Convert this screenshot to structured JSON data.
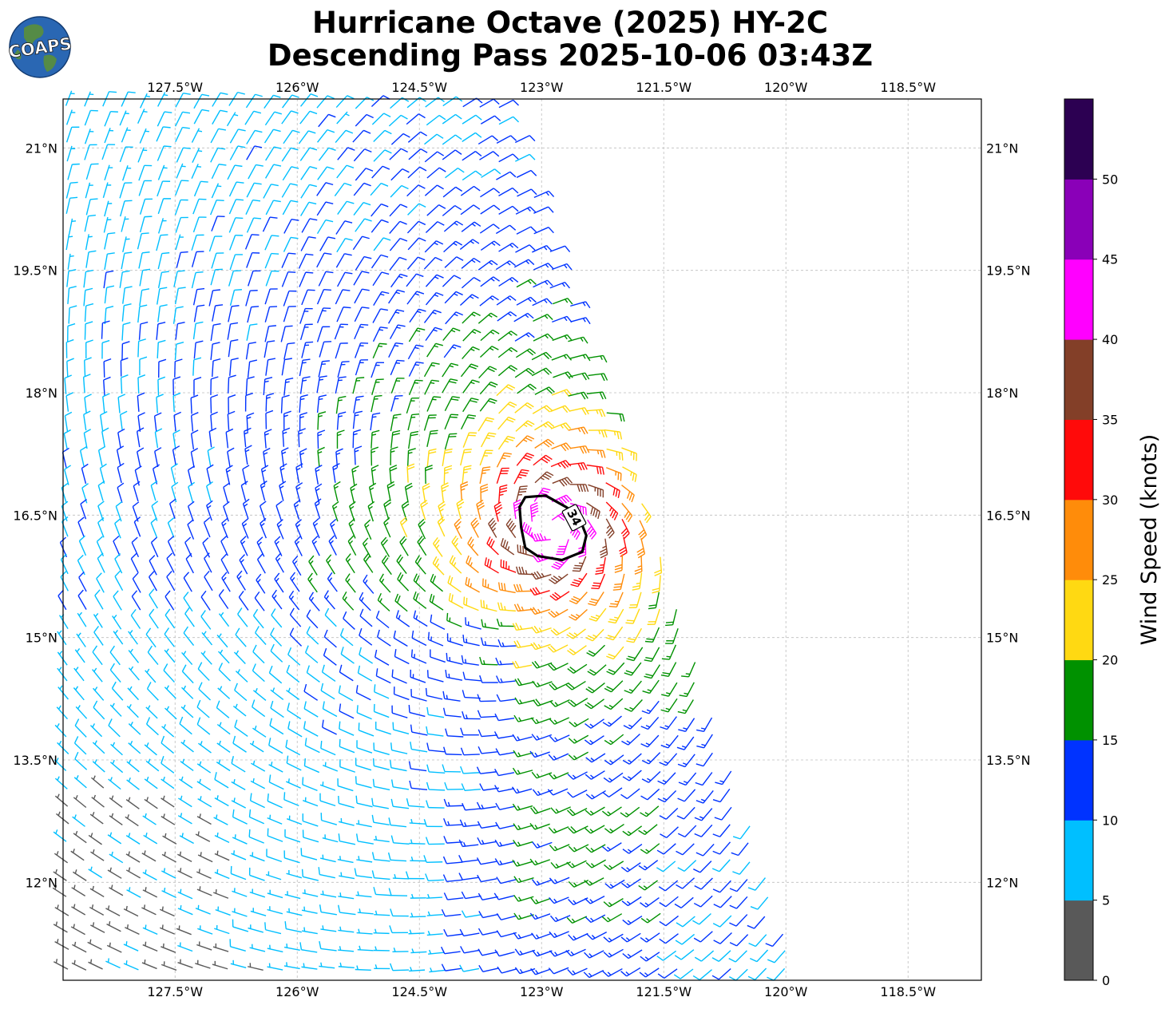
{
  "logo": {
    "text": "COAPS"
  },
  "chart_data": {
    "type": "wind-barbs",
    "title_line1": "Hurricane Octave (2025) HY-2C",
    "title_line2": "Descending Pass 2025-10-06 03:43Z",
    "x_ticks": [
      "127.5°W",
      "126°W",
      "124.5°W",
      "123°W",
      "121.5°W",
      "120°W",
      "118.5°W"
    ],
    "x_tick_values": [
      -127.5,
      -126,
      -124.5,
      -123,
      -121.5,
      -120,
      -118.5
    ],
    "y_ticks": [
      "21°N",
      "19.5°N",
      "18°N",
      "16.5°N",
      "15°N",
      "13.5°N",
      "12°N"
    ],
    "y_tick_values": [
      21,
      19.5,
      18,
      16.5,
      15,
      13.5,
      12
    ],
    "xlim": [
      -128.875,
      -117.6
    ],
    "ylim": [
      10.8,
      21.6
    ],
    "grid": true,
    "storm_center": {
      "lon": -122.85,
      "lat": 16.35
    },
    "contour": {
      "level": 34,
      "label": "34",
      "units": "knots"
    },
    "colorbar": {
      "label": "Wind Speed (knots)",
      "ticks": [
        "0",
        "5",
        "10",
        "15",
        "20",
        "25",
        "30",
        "35",
        "40",
        "45",
        "50"
      ],
      "bins": [
        {
          "min": 0,
          "max": 5,
          "color": "#595959"
        },
        {
          "min": 5,
          "max": 10,
          "color": "#00bfff"
        },
        {
          "min": 10,
          "max": 15,
          "color": "#0033ff"
        },
        {
          "min": 15,
          "max": 20,
          "color": "#009100"
        },
        {
          "min": 20,
          "max": 25,
          "color": "#ffd912"
        },
        {
          "min": 25,
          "max": 30,
          "color": "#ff8c0a"
        },
        {
          "min": 30,
          "max": 35,
          "color": "#ff0a0a"
        },
        {
          "min": 35,
          "max": 40,
          "color": "#833f28"
        },
        {
          "min": 40,
          "max": 45,
          "color": "#ff00ff"
        },
        {
          "min": 45,
          "max": 50,
          "color": "#8a00b8"
        },
        {
          "min": 50,
          "max": 55,
          "color": "#2c0052"
        }
      ]
    }
  }
}
